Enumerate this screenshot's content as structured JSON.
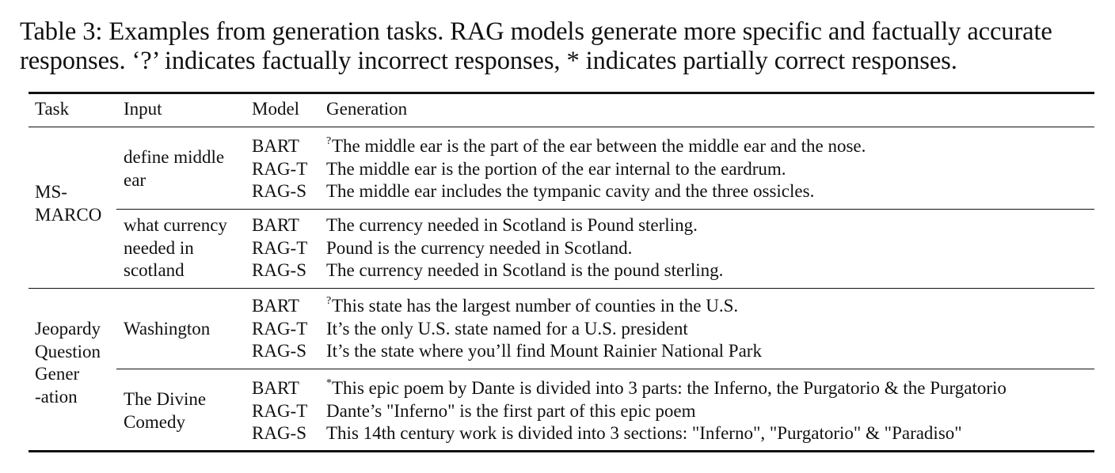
{
  "caption": {
    "line1": "Table 3: Examples from generation tasks. RAG models generate more specific and factually accurate",
    "line2": "responses. ‘?’ indicates factually incorrect responses, * indicates partially correct responses."
  },
  "header": {
    "task": "Task",
    "input": "Input",
    "model": "Model",
    "generation": "Generation"
  },
  "groups": [
    {
      "task_lines": [
        "MS-",
        "MARCO"
      ],
      "blocks": [
        {
          "input_lines": [
            "define middle",
            "ear"
          ],
          "rows": [
            {
              "model": "BART",
              "mark": "?",
              "text": "The middle ear is the part of the ear between the middle ear and the nose."
            },
            {
              "model": "RAG-T",
              "mark": "",
              "text": "The middle ear is the portion of the ear internal to the eardrum."
            },
            {
              "model": "RAG-S",
              "mark": "",
              "text": "The middle ear includes the tympanic cavity and the three ossicles."
            }
          ]
        },
        {
          "input_lines": [
            "what currency",
            "needed in",
            "scotland"
          ],
          "rows": [
            {
              "model": "BART",
              "mark": "",
              "text": "The currency needed in Scotland is Pound sterling."
            },
            {
              "model": "RAG-T",
              "mark": "",
              "text": "Pound is the currency needed in Scotland."
            },
            {
              "model": "RAG-S",
              "mark": "",
              "text": "The currency needed in Scotland is the pound sterling."
            }
          ]
        }
      ]
    },
    {
      "task_lines": [
        "Jeopardy",
        "Question",
        "Gener",
        "-ation"
      ],
      "blocks": [
        {
          "input_lines": [
            "Washington"
          ],
          "rows": [
            {
              "model": "BART",
              "mark": "?",
              "text": "This state has the largest number of counties in the U.S."
            },
            {
              "model": "RAG-T",
              "mark": "",
              "text": "It’s the only U.S. state named for a U.S. president"
            },
            {
              "model": "RAG-S",
              "mark": "",
              "text": "It’s the state where you’ll find Mount Rainier National Park"
            }
          ]
        },
        {
          "input_lines": [
            "The Divine",
            "Comedy"
          ],
          "rows": [
            {
              "model": "BART",
              "mark": "*",
              "text": "This epic poem by Dante is divided into 3 parts: the Inferno, the Purgatorio & the Purgatorio"
            },
            {
              "model": "RAG-T",
              "mark": "",
              "text": "Dante’s \"Inferno\" is the first part of this epic poem"
            },
            {
              "model": "RAG-S",
              "mark": "",
              "text": "This 14th century work is divided into 3 sections: \"Inferno\", \"Purgatorio\" & \"Paradiso\""
            }
          ]
        }
      ]
    }
  ]
}
